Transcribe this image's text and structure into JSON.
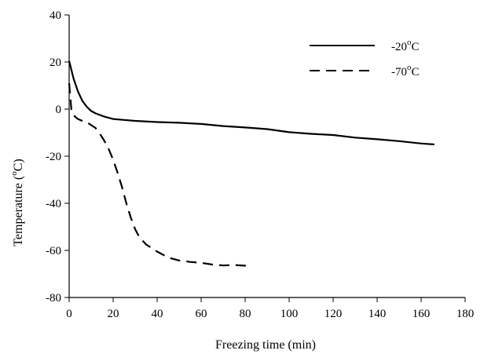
{
  "chart_data": {
    "type": "line",
    "xlabel": "Freezing time (min)",
    "ylabel": {
      "prefix": "Temperature (",
      "sup": "o",
      "suffix": "C)"
    },
    "xlim": [
      0,
      180
    ],
    "ylim": [
      -80,
      40
    ],
    "x_ticks": [
      0,
      20,
      40,
      60,
      80,
      100,
      120,
      140,
      160,
      180
    ],
    "y_ticks": [
      40,
      20,
      0,
      -20,
      -40,
      -60,
      -80
    ],
    "grid": false,
    "legend_position": "top-right",
    "series": [
      {
        "name": {
          "prefix": "-20",
          "sup": "o",
          "suffix": "C"
        },
        "style": "solid",
        "color": "#000000",
        "x": [
          0,
          2,
          4,
          6,
          8,
          10,
          12,
          16,
          20,
          25,
          30,
          40,
          50,
          60,
          70,
          80,
          90,
          100,
          110,
          120,
          130,
          140,
          150,
          160,
          166
        ],
        "y": [
          20.5,
          13,
          7.5,
          3.5,
          1,
          -0.8,
          -1.8,
          -3.2,
          -4.2,
          -4.6,
          -5,
          -5.5,
          -5.8,
          -6.3,
          -7.2,
          -7.8,
          -8.5,
          -9.8,
          -10.5,
          -11,
          -12.1,
          -12.8,
          -13.6,
          -14.6,
          -15
        ]
      },
      {
        "name": {
          "prefix": "-70",
          "sup": "o",
          "suffix": "C"
        },
        "style": "dashed",
        "color": "#000000",
        "x": [
          0,
          1,
          2,
          3,
          4,
          6,
          8,
          10,
          12,
          14,
          16,
          18,
          20,
          22,
          24,
          26,
          28,
          30,
          32,
          35,
          40,
          45,
          50,
          55,
          60,
          65,
          70,
          75,
          80,
          83
        ],
        "y": [
          11,
          0,
          -2.5,
          -3.5,
          -4.2,
          -5,
          -5.5,
          -6.8,
          -8,
          -10.5,
          -13.5,
          -17,
          -21.5,
          -27,
          -33,
          -40,
          -46,
          -51,
          -54.5,
          -57.5,
          -60.5,
          -63,
          -64.3,
          -64.9,
          -65.3,
          -66,
          -66.4,
          -66.2,
          -66.5,
          -66.8
        ]
      }
    ]
  }
}
